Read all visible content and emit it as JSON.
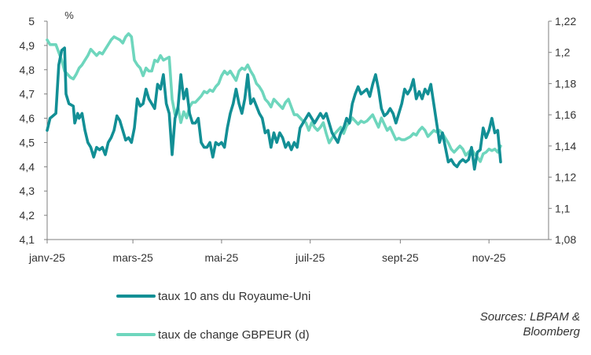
{
  "chart_data": {
    "type": "line",
    "y_left_unit": "%",
    "y_left": {
      "min": 4.1,
      "max": 5.0,
      "ticks": [
        "4,1",
        "4,2",
        "4,3",
        "4,4",
        "4,5",
        "4,6",
        "4,7",
        "4,8",
        "4,9",
        "5"
      ]
    },
    "y_right": {
      "min": 1.08,
      "max": 1.22,
      "ticks": [
        "1,08",
        "1,1",
        "1,12",
        "1,14",
        "1,16",
        "1,18",
        "1,2",
        "1,22"
      ]
    },
    "x_range": [
      0,
      345
    ],
    "x_ticks": [
      {
        "day": 0,
        "label": "janv-25"
      },
      {
        "day": 59,
        "label": "mars-25"
      },
      {
        "day": 120,
        "label": "mai-25"
      },
      {
        "day": 181,
        "label": "juil-25"
      },
      {
        "day": 243,
        "label": "sept-25"
      },
      {
        "day": 304,
        "label": "nov-25"
      }
    ],
    "series": [
      {
        "name": "taux 10 ans du Royaume-Uni",
        "axis": "left",
        "color": "#128f95",
        "points": [
          [
            0,
            4.55
          ],
          [
            2,
            4.6
          ],
          [
            6,
            4.62
          ],
          [
            8,
            4.82
          ],
          [
            10,
            4.88
          ],
          [
            12,
            4.89
          ],
          [
            13,
            4.7
          ],
          [
            15,
            4.66
          ],
          [
            18,
            4.65
          ],
          [
            19,
            4.58
          ],
          [
            21,
            4.62
          ],
          [
            22,
            4.6
          ],
          [
            24,
            4.62
          ],
          [
            26,
            4.55
          ],
          [
            28,
            4.5
          ],
          [
            30,
            4.48
          ],
          [
            32,
            4.44
          ],
          [
            34,
            4.48
          ],
          [
            36,
            4.47
          ],
          [
            38,
            4.48
          ],
          [
            40,
            4.45
          ],
          [
            42,
            4.5
          ],
          [
            44,
            4.52
          ],
          [
            46,
            4.55
          ],
          [
            48,
            4.61
          ],
          [
            50,
            4.59
          ],
          [
            52,
            4.55
          ],
          [
            54,
            4.51
          ],
          [
            56,
            4.52
          ],
          [
            58,
            4.5
          ],
          [
            60,
            4.56
          ],
          [
            62,
            4.68
          ],
          [
            64,
            4.65
          ],
          [
            66,
            4.66
          ],
          [
            68,
            4.72
          ],
          [
            70,
            4.68
          ],
          [
            72,
            4.66
          ],
          [
            74,
            4.64
          ],
          [
            76,
            4.74
          ],
          [
            78,
            4.72
          ],
          [
            80,
            4.78
          ],
          [
            82,
            4.66
          ],
          [
            84,
            4.62
          ],
          [
            86,
            4.45
          ],
          [
            88,
            4.6
          ],
          [
            90,
            4.64
          ],
          [
            92,
            4.78
          ],
          [
            94,
            4.68
          ],
          [
            96,
            4.72
          ],
          [
            98,
            4.62
          ],
          [
            100,
            4.58
          ],
          [
            102,
            4.58
          ],
          [
            104,
            4.6
          ],
          [
            106,
            4.5
          ],
          [
            108,
            4.48
          ],
          [
            110,
            4.48
          ],
          [
            112,
            4.5
          ],
          [
            114,
            4.44
          ],
          [
            116,
            4.5
          ],
          [
            118,
            4.49
          ],
          [
            120,
            4.5
          ],
          [
            122,
            4.48
          ],
          [
            124,
            4.56
          ],
          [
            126,
            4.62
          ],
          [
            128,
            4.66
          ],
          [
            130,
            4.72
          ],
          [
            132,
            4.66
          ],
          [
            134,
            4.62
          ],
          [
            136,
            4.68
          ],
          [
            138,
            4.78
          ],
          [
            140,
            4.66
          ],
          [
            142,
            4.68
          ],
          [
            144,
            4.65
          ],
          [
            146,
            4.62
          ],
          [
            148,
            4.6
          ],
          [
            150,
            4.54
          ],
          [
            152,
            4.55
          ],
          [
            154,
            4.48
          ],
          [
            156,
            4.54
          ],
          [
            158,
            4.5
          ],
          [
            160,
            4.54
          ],
          [
            162,
            4.52
          ],
          [
            164,
            4.48
          ],
          [
            166,
            4.5
          ],
          [
            168,
            4.47
          ],
          [
            170,
            4.5
          ],
          [
            172,
            4.48
          ],
          [
            174,
            4.56
          ],
          [
            176,
            4.58
          ],
          [
            178,
            4.6
          ],
          [
            180,
            4.62
          ],
          [
            182,
            4.6
          ],
          [
            184,
            4.58
          ],
          [
            186,
            4.6
          ],
          [
            188,
            4.62
          ],
          [
            190,
            4.6
          ],
          [
            192,
            4.62
          ],
          [
            194,
            4.58
          ],
          [
            196,
            4.54
          ],
          [
            198,
            4.52
          ],
          [
            200,
            4.5
          ],
          [
            202,
            4.54
          ],
          [
            204,
            4.56
          ],
          [
            206,
            4.6
          ],
          [
            208,
            4.58
          ],
          [
            210,
            4.66
          ],
          [
            212,
            4.7
          ],
          [
            214,
            4.73
          ],
          [
            216,
            4.7
          ],
          [
            218,
            4.71
          ],
          [
            220,
            4.72
          ],
          [
            222,
            4.69
          ],
          [
            224,
            4.74
          ],
          [
            226,
            4.78
          ],
          [
            228,
            4.72
          ],
          [
            230,
            4.64
          ],
          [
            232,
            4.61
          ],
          [
            234,
            4.62
          ],
          [
            236,
            4.64
          ],
          [
            238,
            4.62
          ],
          [
            240,
            4.58
          ],
          [
            242,
            4.62
          ],
          [
            244,
            4.66
          ],
          [
            246,
            4.72
          ],
          [
            248,
            4.7
          ],
          [
            250,
            4.72
          ],
          [
            252,
            4.76
          ],
          [
            254,
            4.68
          ],
          [
            256,
            4.71
          ],
          [
            258,
            4.68
          ],
          [
            260,
            4.72
          ],
          [
            262,
            4.7
          ],
          [
            264,
            4.74
          ],
          [
            266,
            4.66
          ],
          [
            268,
            4.58
          ],
          [
            270,
            4.5
          ],
          [
            272,
            4.54
          ],
          [
            274,
            4.48
          ],
          [
            276,
            4.42
          ],
          [
            278,
            4.43
          ],
          [
            280,
            4.41
          ],
          [
            282,
            4.4
          ],
          [
            284,
            4.42
          ],
          [
            286,
            4.43
          ],
          [
            288,
            4.42
          ],
          [
            290,
            4.43
          ],
          [
            292,
            4.48
          ],
          [
            294,
            4.39
          ],
          [
            296,
            4.46
          ],
          [
            298,
            4.47
          ],
          [
            300,
            4.56
          ],
          [
            302,
            4.52
          ],
          [
            304,
            4.55
          ],
          [
            306,
            4.6
          ],
          [
            308,
            4.54
          ],
          [
            310,
            4.55
          ],
          [
            312,
            4.42
          ]
        ]
      },
      {
        "name": "taux de change GBPEUR (d)",
        "axis": "right",
        "color": "#6ed6bd",
        "points": [
          [
            0,
            1.208
          ],
          [
            2,
            1.205
          ],
          [
            6,
            1.205
          ],
          [
            8,
            1.2
          ],
          [
            10,
            1.195
          ],
          [
            12,
            1.188
          ],
          [
            14,
            1.186
          ],
          [
            16,
            1.184
          ],
          [
            18,
            1.183
          ],
          [
            20,
            1.186
          ],
          [
            22,
            1.19
          ],
          [
            24,
            1.192
          ],
          [
            26,
            1.195
          ],
          [
            28,
            1.198
          ],
          [
            30,
            1.202
          ],
          [
            32,
            1.2
          ],
          [
            34,
            1.198
          ],
          [
            36,
            1.2
          ],
          [
            38,
            1.199
          ],
          [
            40,
            1.202
          ],
          [
            42,
            1.205
          ],
          [
            44,
            1.208
          ],
          [
            46,
            1.21
          ],
          [
            48,
            1.209
          ],
          [
            50,
            1.208
          ],
          [
            52,
            1.206
          ],
          [
            54,
            1.21
          ],
          [
            56,
            1.212
          ],
          [
            58,
            1.21
          ],
          [
            60,
            1.195
          ],
          [
            62,
            1.192
          ],
          [
            64,
            1.19
          ],
          [
            66,
            1.185
          ],
          [
            68,
            1.19
          ],
          [
            70,
            1.188
          ],
          [
            72,
            1.188
          ],
          [
            74,
            1.195
          ],
          [
            76,
            1.194
          ],
          [
            78,
            1.198
          ],
          [
            80,
            1.195
          ],
          [
            82,
            1.196
          ],
          [
            84,
            1.197
          ],
          [
            86,
            1.17
          ],
          [
            88,
            1.16
          ],
          [
            90,
            1.165
          ],
          [
            92,
            1.155
          ],
          [
            94,
            1.162
          ],
          [
            96,
            1.158
          ],
          [
            98,
            1.165
          ],
          [
            100,
            1.168
          ],
          [
            102,
            1.168
          ],
          [
            104,
            1.17
          ],
          [
            106,
            1.172
          ],
          [
            108,
            1.175
          ],
          [
            110,
            1.174
          ],
          [
            112,
            1.176
          ],
          [
            114,
            1.175
          ],
          [
            116,
            1.178
          ],
          [
            118,
            1.18
          ],
          [
            120,
            1.185
          ],
          [
            122,
            1.188
          ],
          [
            124,
            1.186
          ],
          [
            126,
            1.188
          ],
          [
            128,
            1.185
          ],
          [
            130,
            1.182
          ],
          [
            132,
            1.188
          ],
          [
            134,
            1.19
          ],
          [
            136,
            1.189
          ],
          [
            138,
            1.192
          ],
          [
            140,
            1.188
          ],
          [
            142,
            1.185
          ],
          [
            144,
            1.18
          ],
          [
            146,
            1.178
          ],
          [
            148,
            1.175
          ],
          [
            150,
            1.17
          ],
          [
            152,
            1.168
          ],
          [
            154,
            1.165
          ],
          [
            156,
            1.17
          ],
          [
            158,
            1.168
          ],
          [
            160,
            1.166
          ],
          [
            162,
            1.164
          ],
          [
            164,
            1.168
          ],
          [
            166,
            1.17
          ],
          [
            168,
            1.165
          ],
          [
            170,
            1.16
          ],
          [
            172,
            1.16
          ],
          [
            174,
            1.158
          ],
          [
            176,
            1.156
          ],
          [
            178,
            1.155
          ],
          [
            180,
            1.15
          ],
          [
            182,
            1.155
          ],
          [
            184,
            1.152
          ],
          [
            186,
            1.15
          ],
          [
            188,
            1.152
          ],
          [
            190,
            1.155
          ],
          [
            192,
            1.148
          ],
          [
            194,
            1.142
          ],
          [
            196,
            1.145
          ],
          [
            198,
            1.148
          ],
          [
            200,
            1.15
          ],
          [
            202,
            1.152
          ],
          [
            204,
            1.148
          ],
          [
            206,
            1.153
          ],
          [
            208,
            1.155
          ],
          [
            210,
            1.158
          ],
          [
            212,
            1.156
          ],
          [
            214,
            1.154
          ],
          [
            216,
            1.156
          ],
          [
            218,
            1.155
          ],
          [
            220,
            1.156
          ],
          [
            222,
            1.158
          ],
          [
            224,
            1.16
          ],
          [
            226,
            1.156
          ],
          [
            228,
            1.152
          ],
          [
            230,
            1.158
          ],
          [
            232,
            1.154
          ],
          [
            234,
            1.15
          ],
          [
            236,
            1.152
          ],
          [
            238,
            1.148
          ],
          [
            240,
            1.144
          ],
          [
            242,
            1.145
          ],
          [
            244,
            1.144
          ],
          [
            246,
            1.144
          ],
          [
            248,
            1.145
          ],
          [
            250,
            1.146
          ],
          [
            252,
            1.148
          ],
          [
            254,
            1.147
          ],
          [
            256,
            1.15
          ],
          [
            258,
            1.152
          ],
          [
            260,
            1.15
          ],
          [
            262,
            1.146
          ],
          [
            264,
            1.148
          ],
          [
            266,
            1.15
          ],
          [
            268,
            1.149
          ],
          [
            270,
            1.15
          ],
          [
            272,
            1.148
          ],
          [
            274,
            1.145
          ],
          [
            276,
            1.142
          ],
          [
            278,
            1.138
          ],
          [
            280,
            1.136
          ],
          [
            282,
            1.138
          ],
          [
            284,
            1.14
          ],
          [
            286,
            1.138
          ],
          [
            288,
            1.134
          ],
          [
            290,
            1.136
          ],
          [
            292,
            1.138
          ],
          [
            294,
            1.135
          ],
          [
            296,
            1.133
          ],
          [
            298,
            1.13
          ],
          [
            300,
            1.135
          ],
          [
            302,
            1.136
          ],
          [
            304,
            1.138
          ],
          [
            306,
            1.137
          ],
          [
            308,
            1.138
          ],
          [
            310,
            1.136
          ],
          [
            312,
            1.14
          ]
        ]
      }
    ]
  },
  "source": {
    "line1": "Sources: LBPAM &",
    "line2": "Bloomberg"
  }
}
